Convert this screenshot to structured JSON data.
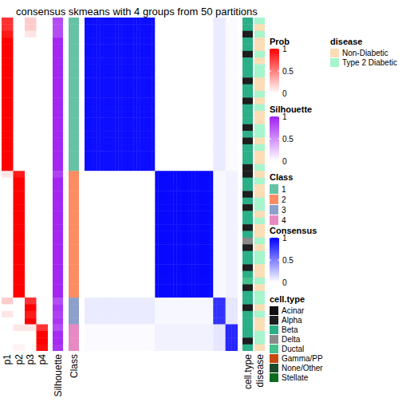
{
  "chart_data": {
    "type": "heatmap",
    "title": "consensus skmeans with 4 groups from 50 partitions",
    "columns": {
      "prob": [
        "p1",
        "p2",
        "p3",
        "p4"
      ],
      "silhouette": "Silhouette",
      "class": "Class",
      "cell_type": "cell.type",
      "disease": "disease"
    },
    "scales": {
      "prob": {
        "title": "Prob",
        "range": [
          0,
          1
        ],
        "ticks": [
          0,
          0.5,
          1
        ],
        "color": "#FF0000"
      },
      "silhouette": {
        "title": "Silhouette",
        "range": [
          0,
          1
        ],
        "ticks": [
          0,
          0.5,
          1
        ],
        "color": "#A020F0"
      },
      "consensus": {
        "title": "Consensus",
        "range": [
          0,
          1
        ],
        "ticks": [
          0,
          0.5,
          1
        ],
        "color": "#0000FF"
      }
    },
    "class_legend": {
      "title": "Class",
      "categories": [
        1,
        2,
        3,
        4
      ],
      "colors": [
        "#66C2A5",
        "#FC8D62",
        "#8DA0CB",
        "#E78AC3"
      ]
    },
    "cell_type_legend": {
      "title": "cell.type",
      "categories": [
        "Acinar",
        "Alpha",
        "Beta",
        "Delta",
        "Ductal",
        "Gamma/PP",
        "None/Other",
        "Stellate"
      ],
      "colors": [
        "#111111",
        "#1E1E1E",
        "#2BAF86",
        "#8A8A8A",
        "#44C28C",
        "#C64A10",
        "#1D4B2A",
        "#0E6A1C"
      ]
    },
    "disease_legend": {
      "title": "disease",
      "categories": [
        "Non-Diabetic",
        "Type 2 Diabetic"
      ],
      "colors": [
        "#FBDDB6",
        "#A6F5CD"
      ]
    },
    "samples": {
      "class": [
        1,
        1,
        1,
        1,
        1,
        1,
        1,
        1,
        1,
        1,
        1,
        1,
        1,
        1,
        1,
        1,
        1,
        1,
        1,
        1,
        1,
        1,
        1,
        2,
        2,
        2,
        2,
        2,
        2,
        2,
        2,
        2,
        2,
        2,
        2,
        2,
        2,
        2,
        2,
        2,
        2,
        2,
        3,
        3,
        3,
        3,
        4,
        4,
        4,
        4
      ],
      "prob": [
        [
          0.8,
          0,
          0.2,
          0
        ],
        [
          0.8,
          0,
          0.2,
          0
        ],
        [
          0.9,
          0,
          0.1,
          0
        ],
        [
          1,
          0,
          0,
          0
        ],
        [
          1,
          0,
          0,
          0
        ],
        [
          1,
          0,
          0,
          0
        ],
        [
          1,
          0,
          0,
          0
        ],
        [
          1,
          0,
          0,
          0
        ],
        [
          1,
          0,
          0,
          0
        ],
        [
          1,
          0,
          0,
          0
        ],
        [
          1,
          0,
          0,
          0
        ],
        [
          1,
          0,
          0,
          0
        ],
        [
          1,
          0,
          0,
          0
        ],
        [
          1,
          0,
          0,
          0
        ],
        [
          1,
          0,
          0,
          0
        ],
        [
          1,
          0,
          0,
          0
        ],
        [
          1,
          0,
          0,
          0
        ],
        [
          1,
          0,
          0,
          0
        ],
        [
          1,
          0,
          0,
          0
        ],
        [
          1,
          0,
          0,
          0
        ],
        [
          1,
          0,
          0,
          0
        ],
        [
          1,
          0,
          0,
          0
        ],
        [
          1,
          0,
          0,
          0
        ],
        [
          0.1,
          0.9,
          0,
          0
        ],
        [
          0,
          1,
          0,
          0
        ],
        [
          0,
          1,
          0,
          0
        ],
        [
          0,
          1,
          0,
          0
        ],
        [
          0,
          1,
          0,
          0
        ],
        [
          0,
          1,
          0,
          0
        ],
        [
          0,
          1,
          0,
          0
        ],
        [
          0,
          1,
          0,
          0
        ],
        [
          0,
          1,
          0,
          0
        ],
        [
          0,
          1,
          0,
          0
        ],
        [
          0,
          1,
          0,
          0
        ],
        [
          0,
          1,
          0,
          0
        ],
        [
          0,
          1,
          0,
          0
        ],
        [
          0,
          1,
          0,
          0
        ],
        [
          0,
          1,
          0,
          0
        ],
        [
          0,
          1,
          0,
          0
        ],
        [
          0,
          1,
          0,
          0
        ],
        [
          0,
          1,
          0,
          0
        ],
        [
          0,
          1,
          0,
          0
        ],
        [
          0.2,
          0,
          0.8,
          0
        ],
        [
          0,
          0,
          1,
          0
        ],
        [
          0.1,
          0,
          0.9,
          0
        ],
        [
          0,
          0,
          1,
          0
        ],
        [
          0,
          0.1,
          0.1,
          0.8
        ],
        [
          0,
          0,
          0,
          1
        ],
        [
          0,
          0,
          0,
          1
        ],
        [
          0,
          0.05,
          0,
          0.95
        ]
      ],
      "silhouette": [
        0.8,
        0.8,
        0.8,
        0.97,
        0.97,
        0.97,
        0.97,
        0.97,
        0.97,
        0.97,
        0.97,
        0.97,
        0.97,
        0.97,
        0.97,
        0.97,
        0.97,
        0.97,
        0.97,
        0.97,
        0.97,
        0.97,
        0.97,
        0.85,
        0.97,
        0.97,
        0.97,
        0.97,
        0.97,
        0.97,
        0.97,
        0.97,
        0.97,
        0.97,
        0.97,
        0.97,
        0.97,
        0.97,
        0.97,
        0.97,
        0.97,
        0.97,
        0.8,
        0.9,
        0.85,
        0.9,
        0.8,
        0.95,
        0.95,
        0.9
      ],
      "cell_type": [
        "Beta",
        "Beta",
        "Alpha",
        "Beta",
        "Beta",
        "Alpha",
        "Beta",
        "Beta",
        "Beta",
        "Alpha",
        "Beta",
        "Beta",
        "Alpha",
        "Beta",
        "Beta",
        "Beta",
        "Alpha",
        "Beta",
        "Alpha",
        "Beta",
        "Beta",
        "Beta",
        "Alpha",
        "Alpha",
        "Beta",
        "Beta",
        "Alpha",
        "Beta",
        "Alpha",
        "Beta",
        "Beta",
        "Alpha",
        "Beta",
        "Delta",
        "Alpha",
        "Beta",
        "Beta",
        "Alpha",
        "Beta",
        "Ductal",
        "Alpha",
        "Beta",
        "Beta",
        "Alpha",
        "Beta",
        "Beta",
        "Beta",
        "Beta",
        "Alpha",
        "Beta"
      ],
      "disease": [
        "Type 2 Diabetic",
        "Non-Diabetic",
        "Type 2 Diabetic",
        "Non-Diabetic",
        "Non-Diabetic",
        "Type 2 Diabetic",
        "Non-Diabetic",
        "Type 2 Diabetic",
        "Type 2 Diabetic",
        "Non-Diabetic",
        "Non-Diabetic",
        "Type 2 Diabetic",
        "Non-Diabetic",
        "Type 2 Diabetic",
        "Non-Diabetic",
        "Non-Diabetic",
        "Type 2 Diabetic",
        "Type 2 Diabetic",
        "Non-Diabetic",
        "Type 2 Diabetic",
        "Non-Diabetic",
        "Non-Diabetic",
        "Type 2 Diabetic",
        "Non-Diabetic",
        "Type 2 Diabetic",
        "Non-Diabetic",
        "Non-Diabetic",
        "Type 2 Diabetic",
        "Type 2 Diabetic",
        "Non-Diabetic",
        "Type 2 Diabetic",
        "Non-Diabetic",
        "Non-Diabetic",
        "Type 2 Diabetic",
        "Non-Diabetic",
        "Type 2 Diabetic",
        "Type 2 Diabetic",
        "Non-Diabetic",
        "Non-Diabetic",
        "Type 2 Diabetic",
        "Non-Diabetic",
        "Type 2 Diabetic",
        "Type 2 Diabetic",
        "Non-Diabetic",
        "Type 2 Diabetic",
        "Non-Diabetic",
        "Non-Diabetic",
        "Type 2 Diabetic",
        "Type 2 Diabetic",
        "Non-Diabetic"
      ]
    },
    "consensus_by_class": [
      [
        0.95,
        0,
        0.08,
        0.02
      ],
      [
        0,
        0.97,
        0.03,
        0.05
      ],
      [
        0.08,
        0.03,
        0.8,
        0.1
      ],
      [
        0.02,
        0.05,
        0.1,
        0.85
      ]
    ]
  }
}
